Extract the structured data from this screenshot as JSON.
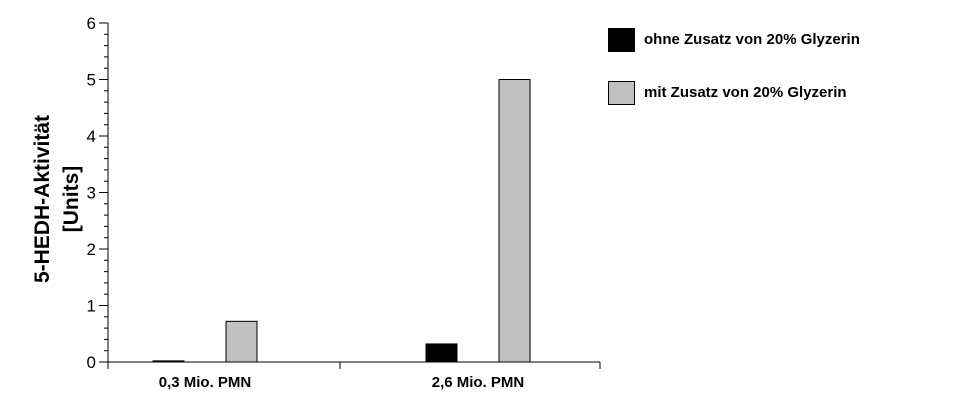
{
  "chart_data": {
    "type": "bar",
    "title": "",
    "xlabel": "",
    "ylabel_lines": [
      "5-HEDH-Aktivität",
      "[Units]"
    ],
    "ylim": [
      0,
      6
    ],
    "yticks": [
      "0",
      "1",
      "2",
      "3",
      "4",
      "5",
      "6"
    ],
    "categories": [
      "0,3 Mio. PMN",
      "2,6 Mio. PMN"
    ],
    "series": [
      {
        "name": "ohne Zusatz von 20% Glyzerin",
        "color": "#000000",
        "values": [
          0.02,
          0.32
        ]
      },
      {
        "name": "mit Zusatz von 20% Glyzerin",
        "color": "#c0c0c0",
        "values": [
          0.72,
          5.0
        ]
      }
    ],
    "grid": false,
    "legend_position": "top-right"
  }
}
